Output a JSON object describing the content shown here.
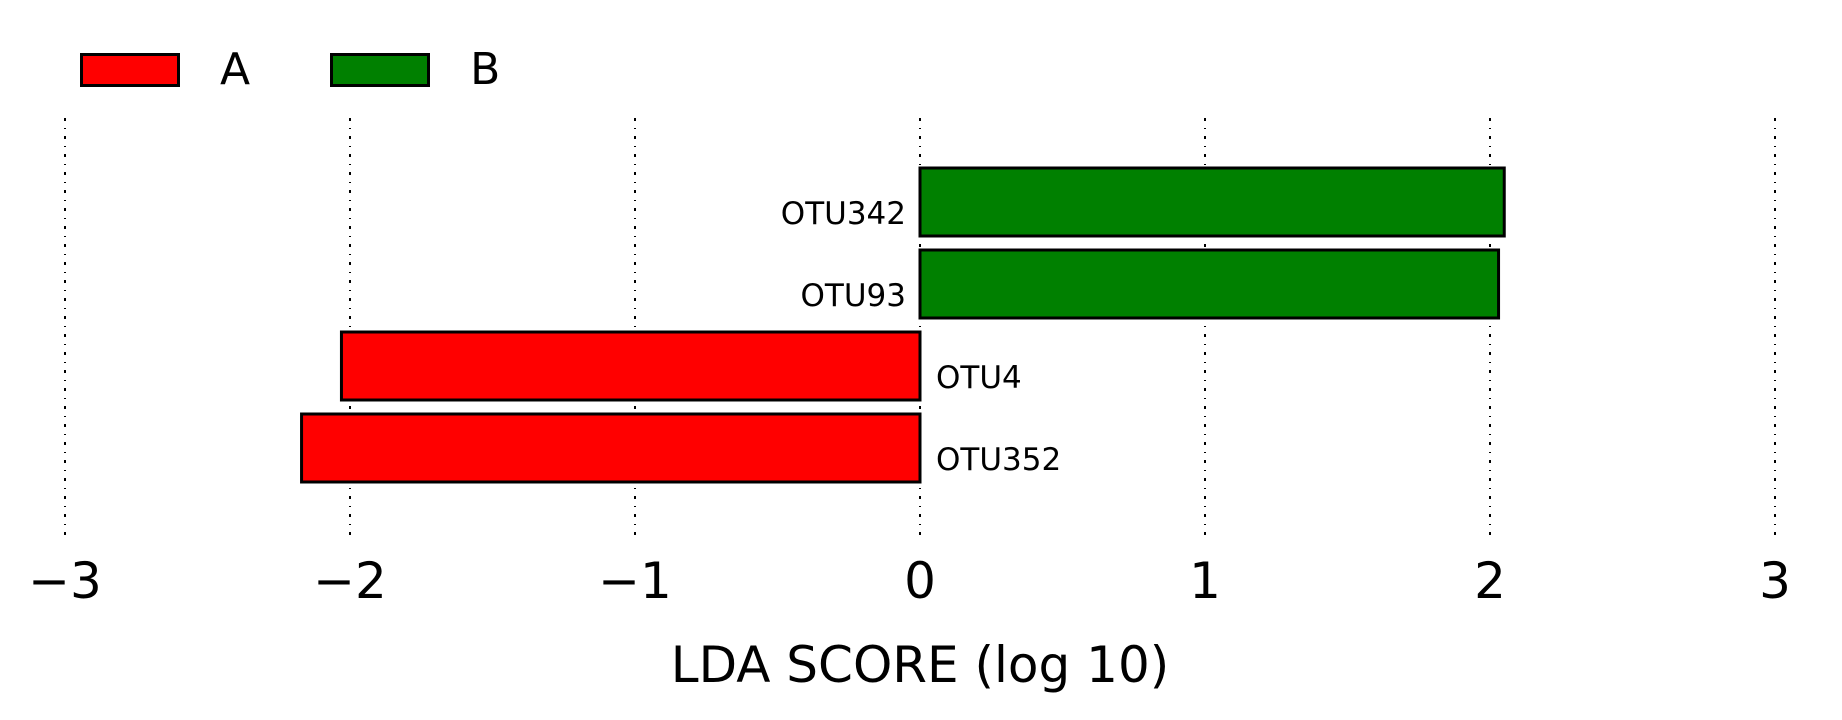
{
  "chart_data": {
    "type": "bar",
    "orientation": "horizontal",
    "title": "",
    "xlabel": "LDA SCORE (log 10)",
    "ylabel": "",
    "xlim": [
      -3,
      3
    ],
    "xticks": [
      -3,
      -2,
      -1,
      0,
      1,
      2,
      3
    ],
    "xtick_labels": [
      "−3",
      "−2",
      "−1",
      "0",
      "1",
      "2",
      "3"
    ],
    "grid": true,
    "legend": {
      "placement": "top-left",
      "entries": [
        {
          "name": "A",
          "color": "#ff0000"
        },
        {
          "name": "B",
          "color": "#008000"
        }
      ]
    },
    "categories": [
      "OTU342",
      "OTU93",
      "OTU4",
      "OTU352"
    ],
    "values": [
      2.05,
      2.03,
      -2.03,
      -2.17
    ],
    "groups": [
      "B",
      "B",
      "A",
      "A"
    ]
  }
}
